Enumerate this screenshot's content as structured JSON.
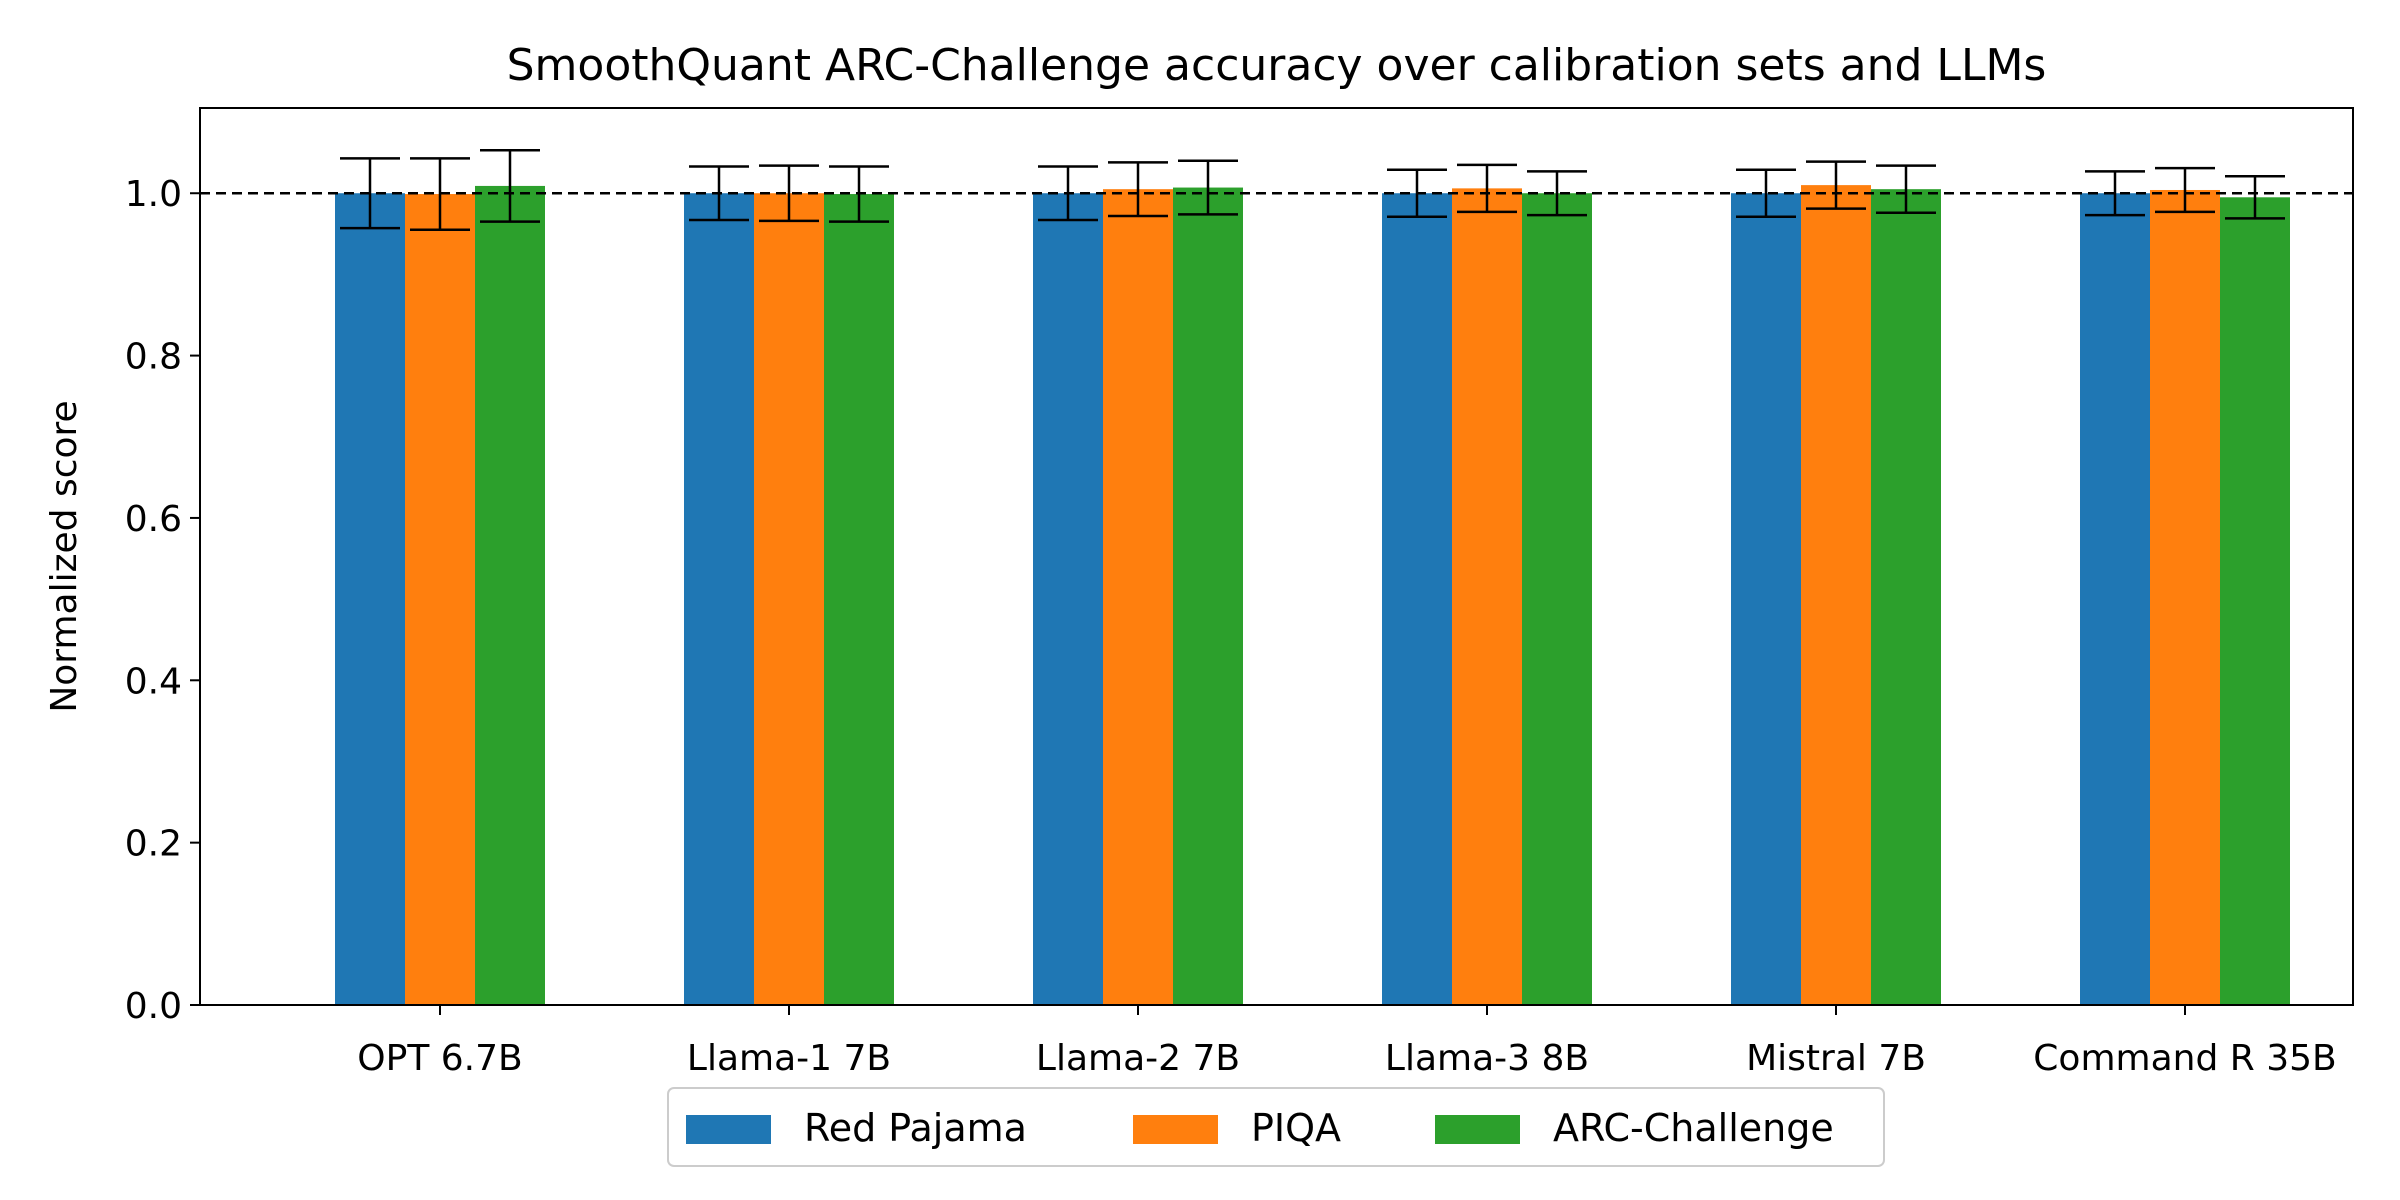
{
  "chart_data": {
    "type": "bar",
    "title": "SmoothQuant ARC-Challenge accuracy over calibration sets and LLMs",
    "xlabel": "",
    "ylabel": "Normalized score",
    "ylim": [
      0,
      1.105
    ],
    "yticks": [
      "0.0",
      "0.2",
      "0.4",
      "0.6",
      "0.8",
      "1.0"
    ],
    "reference_line": {
      "y": 1.0,
      "style": "dashed",
      "color": "#000000"
    },
    "grid": false,
    "legend_position": "bottom-center",
    "categories": [
      "OPT 6.7B",
      "Llama-1 7B",
      "Llama-2 7B",
      "Llama-3 8B",
      "Mistral 7B",
      "Command R 35B"
    ],
    "series": [
      {
        "name": "Red Pajama",
        "color": "#1f77b4",
        "values": [
          1.0,
          1.0,
          1.0,
          1.0,
          1.0,
          1.0
        ],
        "errors": [
          0.043,
          0.033,
          0.033,
          0.029,
          0.029,
          0.027
        ]
      },
      {
        "name": "PIQA",
        "color": "#ff7f0e",
        "values": [
          0.999,
          1.0,
          1.005,
          1.006,
          1.01,
          1.004
        ],
        "errors": [
          0.044,
          0.034,
          0.033,
          0.029,
          0.029,
          0.027
        ]
      },
      {
        "name": "ARC-Challenge",
        "color": "#2ca02c",
        "values": [
          1.009,
          0.999,
          1.007,
          1.0,
          1.005,
          0.995
        ],
        "errors": [
          0.044,
          0.034,
          0.033,
          0.027,
          0.029,
          0.026
        ]
      }
    ]
  }
}
